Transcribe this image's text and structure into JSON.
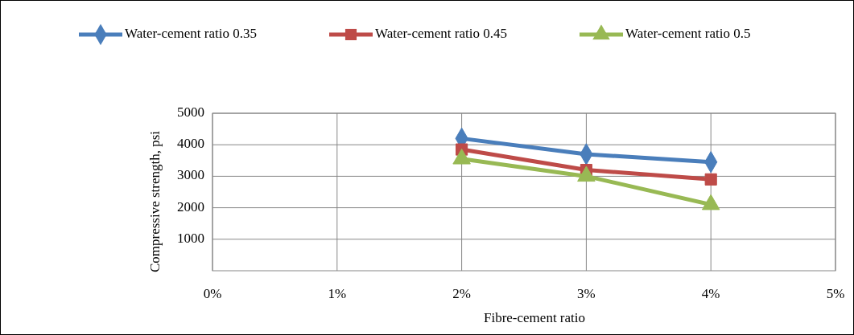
{
  "chart_data": {
    "type": "line",
    "xlabel": "Fibre-cement ratio",
    "ylabel": "Compressive strength, psi",
    "x": [
      2,
      3,
      4
    ],
    "series": [
      {
        "name": "Water-cement ratio 0.35",
        "color": "#4a7ebb",
        "marker": "diamond",
        "values": [
          4200,
          3700,
          3450
        ]
      },
      {
        "name": "Water-cement ratio 0.45",
        "color": "#be4b48",
        "marker": "square",
        "values": [
          3850,
          3200,
          2900
        ]
      },
      {
        "name": "Water-cement ratio 0.5",
        "color": "#98b954",
        "marker": "triangle",
        "values": [
          3550,
          3000,
          2100
        ]
      }
    ],
    "xlim": [
      0,
      5
    ],
    "xticks": [
      {
        "value": 0,
        "label": "0%"
      },
      {
        "value": 1,
        "label": "1%"
      },
      {
        "value": 2,
        "label": "2%"
      },
      {
        "value": 3,
        "label": "3%"
      },
      {
        "value": 4,
        "label": "4%"
      },
      {
        "value": 5,
        "label": "5%"
      }
    ],
    "ylim": [
      0,
      5000
    ],
    "yticks": [
      1000,
      2000,
      3000,
      4000,
      5000
    ],
    "grid": true,
    "legend": "top"
  }
}
